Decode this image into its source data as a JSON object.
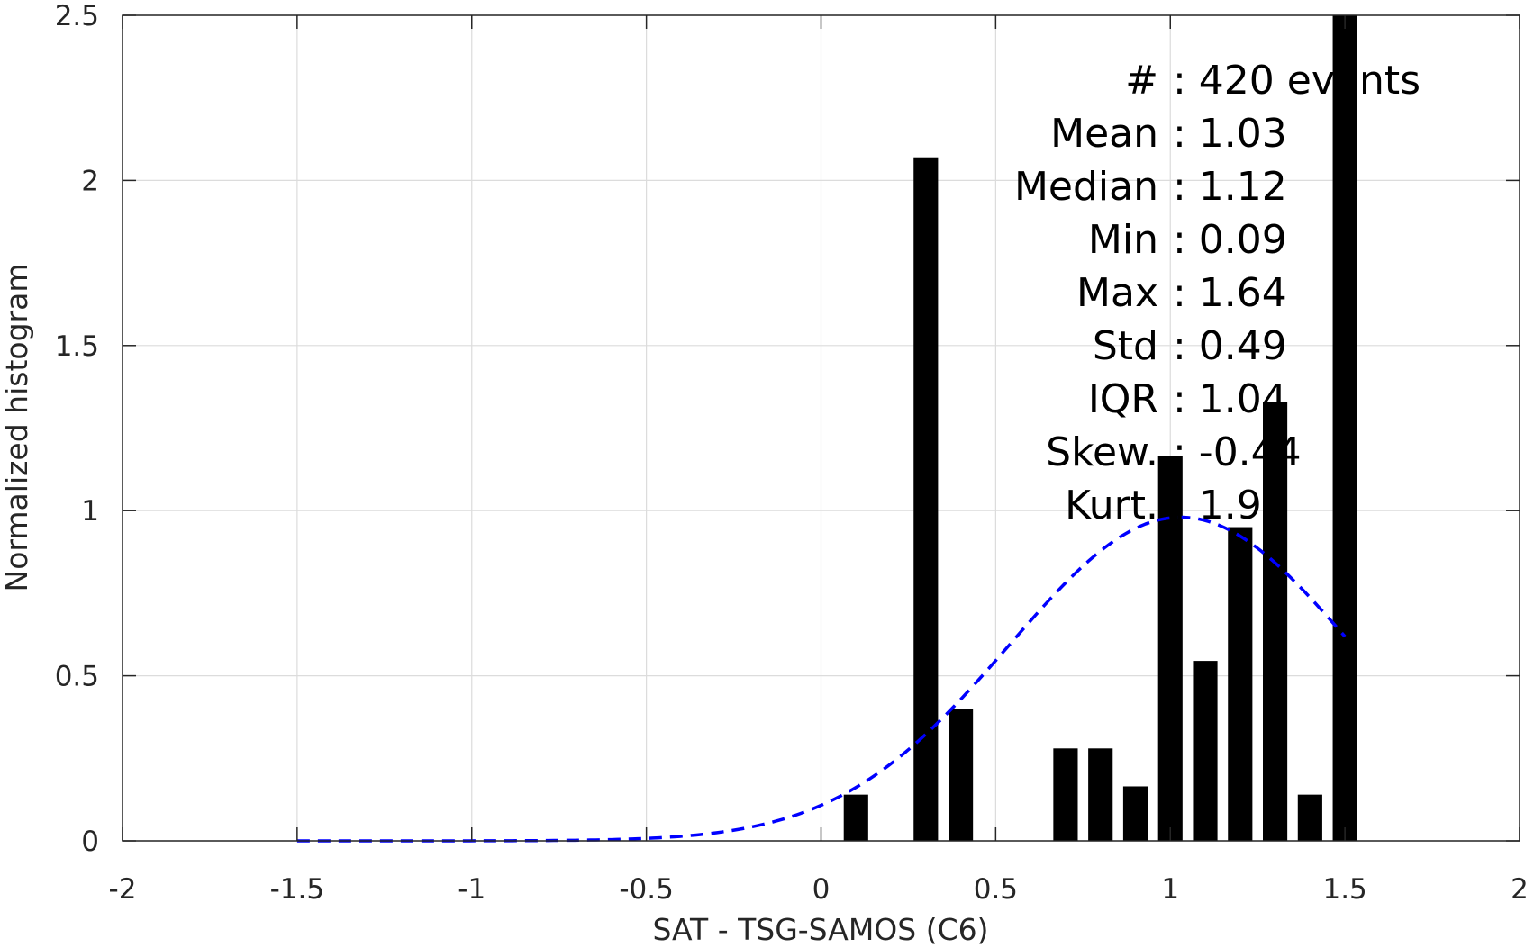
{
  "chart_data": {
    "type": "bar",
    "xlabel": "SAT - TSG-SAMOS (C6)",
    "ylabel": "Normalized histogram",
    "xlim": [
      -2,
      2
    ],
    "ylim": [
      0,
      2.5
    ],
    "xticks": [
      "-2",
      "-1.5",
      "-1",
      "-0.5",
      "0",
      "0.5",
      "1",
      "1.5",
      "2"
    ],
    "yticks": [
      "0",
      "0.5",
      "1",
      "1.5",
      "2",
      "2.5"
    ],
    "grid": true,
    "bar_color": "#000000",
    "bar_width": 0.07,
    "bars": [
      {
        "x": 0.1,
        "value": 0.14
      },
      {
        "x": 0.3,
        "value": 2.07
      },
      {
        "x": 0.4,
        "value": 0.4
      },
      {
        "x": 0.7,
        "value": 0.28
      },
      {
        "x": 0.8,
        "value": 0.28
      },
      {
        "x": 0.9,
        "value": 0.165
      },
      {
        "x": 1.0,
        "value": 1.165
      },
      {
        "x": 1.1,
        "value": 0.545
      },
      {
        "x": 1.2,
        "value": 0.95
      },
      {
        "x": 1.3,
        "value": 1.33
      },
      {
        "x": 1.4,
        "value": 0.14
      },
      {
        "x": 1.5,
        "value": 2.5
      }
    ],
    "fit_curve": {
      "style": "dashed",
      "color": "#0000ff",
      "mean": 1.03,
      "std": 0.49,
      "peak": 0.98,
      "x_range": [
        -1.5,
        1.5
      ]
    },
    "stats": [
      {
        "label": "#",
        "value": ": 420 events"
      },
      {
        "label": "Mean",
        "value": ": 1.03"
      },
      {
        "label": "Median",
        "value": ": 1.12"
      },
      {
        "label": "Min",
        "value": ": 0.09"
      },
      {
        "label": "Max",
        "value": ": 1.64"
      },
      {
        "label": "Std",
        "value": ": 0.49"
      },
      {
        "label": "IQR",
        "value": ": 1.04"
      },
      {
        "label": "Skew.",
        "value": ": -0.44"
      },
      {
        "label": "Kurt.",
        "value": ": 1.90"
      }
    ]
  }
}
